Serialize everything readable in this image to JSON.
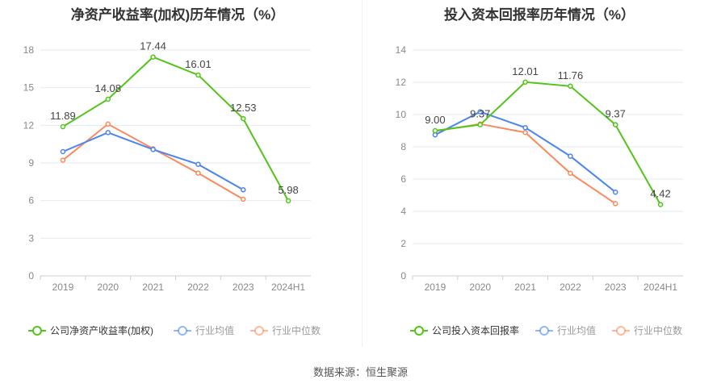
{
  "source": "数据来源：恒生聚源",
  "chart_data": [
    {
      "type": "line",
      "title": "净资产收益率(加权)历年情况（%）",
      "categories": [
        "2019",
        "2020",
        "2021",
        "2022",
        "2023",
        "2024H1"
      ],
      "ylim": [
        0,
        18
      ],
      "yticks": [
        0,
        3,
        6,
        9,
        12,
        15,
        18
      ],
      "grid": true,
      "legend_position": "bottom",
      "series": [
        {
          "name": "公司净资产收益率(加权)",
          "color": "#52c41a",
          "values": [
            11.89,
            14.08,
            17.44,
            16.01,
            12.53,
            5.98
          ],
          "labels": [
            "11.89",
            "14.08",
            "17.44",
            "16.01",
            "12.53",
            "5.98"
          ]
        },
        {
          "name": "行业均值",
          "color": "#4c84f0",
          "values": [
            9.9,
            11.42,
            10.07,
            8.89,
            6.86,
            null
          ]
        },
        {
          "name": "行业中位数",
          "color": "#fb8a5c",
          "values": [
            9.22,
            12.1,
            10.13,
            8.19,
            6.11,
            null
          ]
        }
      ]
    },
    {
      "type": "line",
      "title": "投入资本回报率历年情况（%）",
      "categories": [
        "2019",
        "2020",
        "2021",
        "2022",
        "2023",
        "2024H1"
      ],
      "ylim": [
        0,
        14
      ],
      "yticks": [
        0,
        2,
        4,
        6,
        8,
        10,
        12,
        14
      ],
      "grid": true,
      "legend_position": "bottom",
      "series": [
        {
          "name": "公司投入资本回报率",
          "color": "#52c41a",
          "values": [
            9.0,
            9.37,
            12.01,
            11.76,
            9.37,
            4.42
          ],
          "labels": [
            "9.00",
            "9.37",
            "12.01",
            "11.76",
            "9.37",
            "4.42"
          ]
        },
        {
          "name": "行业均值",
          "color": "#4c84f0",
          "values": [
            8.74,
            10.17,
            9.19,
            7.42,
            5.19,
            null
          ]
        },
        {
          "name": "行业中位数",
          "color": "#fb8a5c",
          "values": [
            8.97,
            9.41,
            8.89,
            6.36,
            4.48,
            null
          ]
        }
      ]
    }
  ]
}
